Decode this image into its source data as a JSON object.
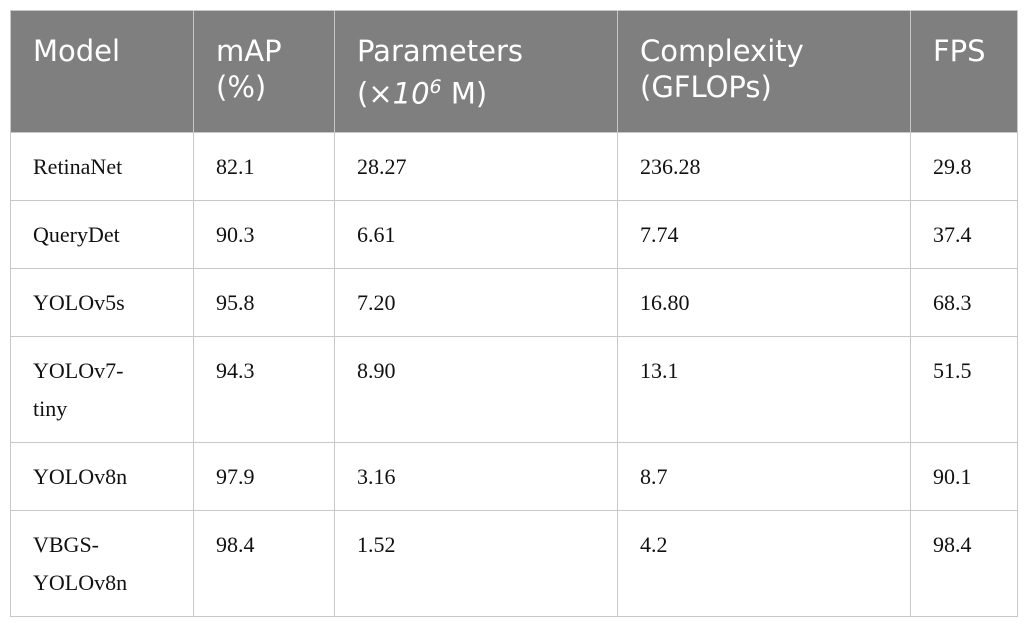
{
  "table": {
    "header": [
      "Model",
      "mAP (%)",
      {
        "before": "Parameters (×",
        "base": "10",
        "exp": "6",
        "after": " M)"
      },
      "Complexity (GFLOPs)",
      "FPS"
    ],
    "rows": [
      [
        "RetinaNet",
        "82.1",
        "28.27",
        "236.28",
        "29.8"
      ],
      [
        "QueryDet",
        "90.3",
        "6.61",
        "7.74",
        "37.4"
      ],
      [
        "YOLOv5s",
        "95.8",
        "7.20",
        "16.80",
        "68.3"
      ],
      [
        "YOLOv7-tiny",
        "94.3",
        "8.90",
        "13.1",
        "51.5"
      ],
      [
        "YOLOv8n",
        "97.9",
        "3.16",
        "8.7",
        "90.1"
      ],
      [
        "VBGS-YOLOv8n",
        "98.4",
        "1.52",
        "4.2",
        "98.4"
      ]
    ]
  }
}
